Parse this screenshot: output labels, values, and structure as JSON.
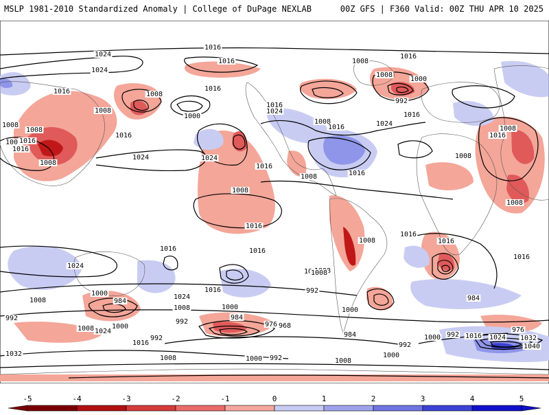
{
  "header": {
    "title_left": "MSLP 1981-2010 Standardized Anomaly | College of DuPage NEXLAB",
    "title_right": "00Z GFS | F360 Valid: 00Z THU APR 10 2025"
  },
  "colorbar": {
    "ticks": [
      "-5",
      "-4",
      "-3",
      "-2",
      "-1",
      "0",
      "1",
      "2",
      "3",
      "4",
      "5"
    ],
    "colors": [
      "#7a0000",
      "#b01010",
      "#d53a3a",
      "#ea6b6b",
      "#f5a79d",
      "#ffffff",
      "#c8cbf3",
      "#9ea3ec",
      "#6e74e0",
      "#3c42d6",
      "#1010cc"
    ]
  },
  "map": {
    "anomaly_colors": {
      "neg_strong": "#c01818",
      "neg_mid": "#e05a5a",
      "neg_light": "#f4a699",
      "pos_light": "#c9ccf2",
      "pos_mid": "#8f95e8",
      "pos_strong": "#3a40d0"
    },
    "isobar_labels": [
      "1016",
      "1024",
      "1016",
      "1016",
      "1024",
      "1008",
      "1008",
      "1000",
      "992",
      "1016",
      "1016",
      "1008",
      "1016",
      "1024",
      "1008",
      "1008",
      "1000",
      "1008",
      "1016",
      "1016",
      "1008",
      "1016",
      "1016",
      "1024",
      "1008",
      "1024",
      "1016",
      "1008",
      "1008",
      "1016",
      "1016",
      "1016",
      "1008",
      "1008",
      "1008",
      "1024",
      "1016",
      "1016",
      "1016",
      "1016",
      "1008",
      "1016",
      "1008",
      "1024",
      "1016",
      "1016",
      "984",
      "1008",
      "992",
      "992",
      "1008",
      "1008",
      "1024",
      "1016",
      "1000",
      "1000",
      "984",
      "1008",
      "1024",
      "992",
      "1000",
      "1016",
      "1008",
      "992",
      "984",
      "976",
      "968",
      "984",
      "1000",
      "984",
      "976",
      "992",
      "1000",
      "1016",
      "1024",
      "1032",
      "1040",
      "1008",
      "1000",
      "992",
      "1000",
      "1008",
      "992",
      "1008",
      "1032"
    ]
  }
}
